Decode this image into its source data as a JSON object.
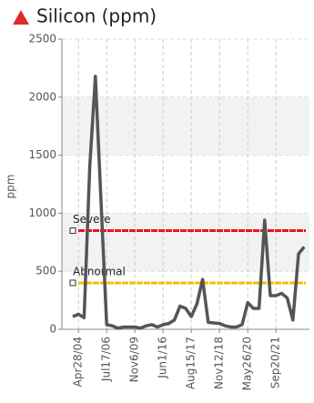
{
  "chart_data": {
    "type": "line",
    "title": "Silicon (ppm)",
    "y_label": "ppm",
    "categories": [
      null,
      "Apr28/04",
      null,
      null,
      null,
      null,
      "Jul17/06",
      null,
      null,
      null,
      null,
      "Nov6/09",
      null,
      null,
      null,
      null,
      "Jun1/16",
      null,
      null,
      null,
      null,
      "Aug15/17",
      null,
      null,
      null,
      null,
      "Nov12/18",
      null,
      null,
      null,
      null,
      "May26/20",
      null,
      null,
      null,
      null,
      "Sep20/21",
      null,
      null,
      null,
      null,
      null
    ],
    "values": [
      110,
      130,
      100,
      1400,
      2180,
      1100,
      40,
      30,
      10,
      20,
      20,
      20,
      10,
      30,
      40,
      20,
      40,
      50,
      80,
      200,
      180,
      110,
      220,
      430,
      60,
      55,
      50,
      30,
      20,
      20,
      40,
      230,
      180,
      180,
      940,
      290,
      290,
      310,
      270,
      80,
      650,
      710
    ],
    "color": "#555555",
    "ylim": [
      0,
      2500
    ],
    "yticks": [
      0,
      500,
      1000,
      1500,
      2000,
      2500
    ],
    "grid": true,
    "thresholds": [
      {
        "name": "Severe",
        "value": 850,
        "color": "#e8141c"
      },
      {
        "name": "Abnormal",
        "value": 400,
        "color": "#f2c200"
      }
    ]
  }
}
